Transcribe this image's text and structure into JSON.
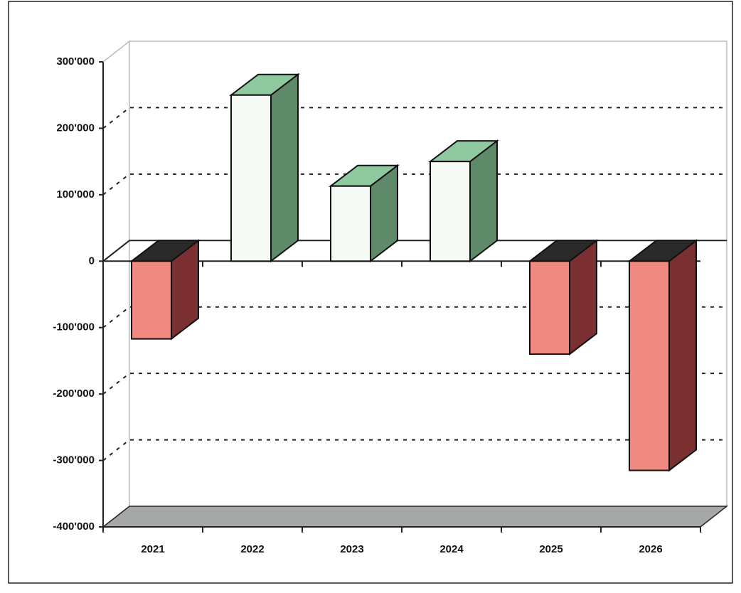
{
  "chart_data": {
    "type": "bar3d",
    "categories": [
      "2021",
      "2022",
      "2023",
      "2024",
      "2025",
      "2026"
    ],
    "values": [
      -117000,
      250000,
      113000,
      150000,
      -140000,
      -315000
    ],
    "color_positive": "#f6faf4",
    "color_negative": "#f08a80",
    "ylim": [
      -400000,
      300000
    ],
    "yticks": [
      {
        "value": -400000,
        "label": "-400'000"
      },
      {
        "value": -300000,
        "label": "-300'000"
      },
      {
        "value": -200000,
        "label": "-200'000"
      },
      {
        "value": -100000,
        "label": "-100'000"
      },
      0,
      {
        "value": 100000,
        "label": "100'000"
      },
      {
        "value": 200000,
        "label": "200'000"
      },
      {
        "value": 300000,
        "label": "300'000"
      }
    ],
    "grid": true
  }
}
